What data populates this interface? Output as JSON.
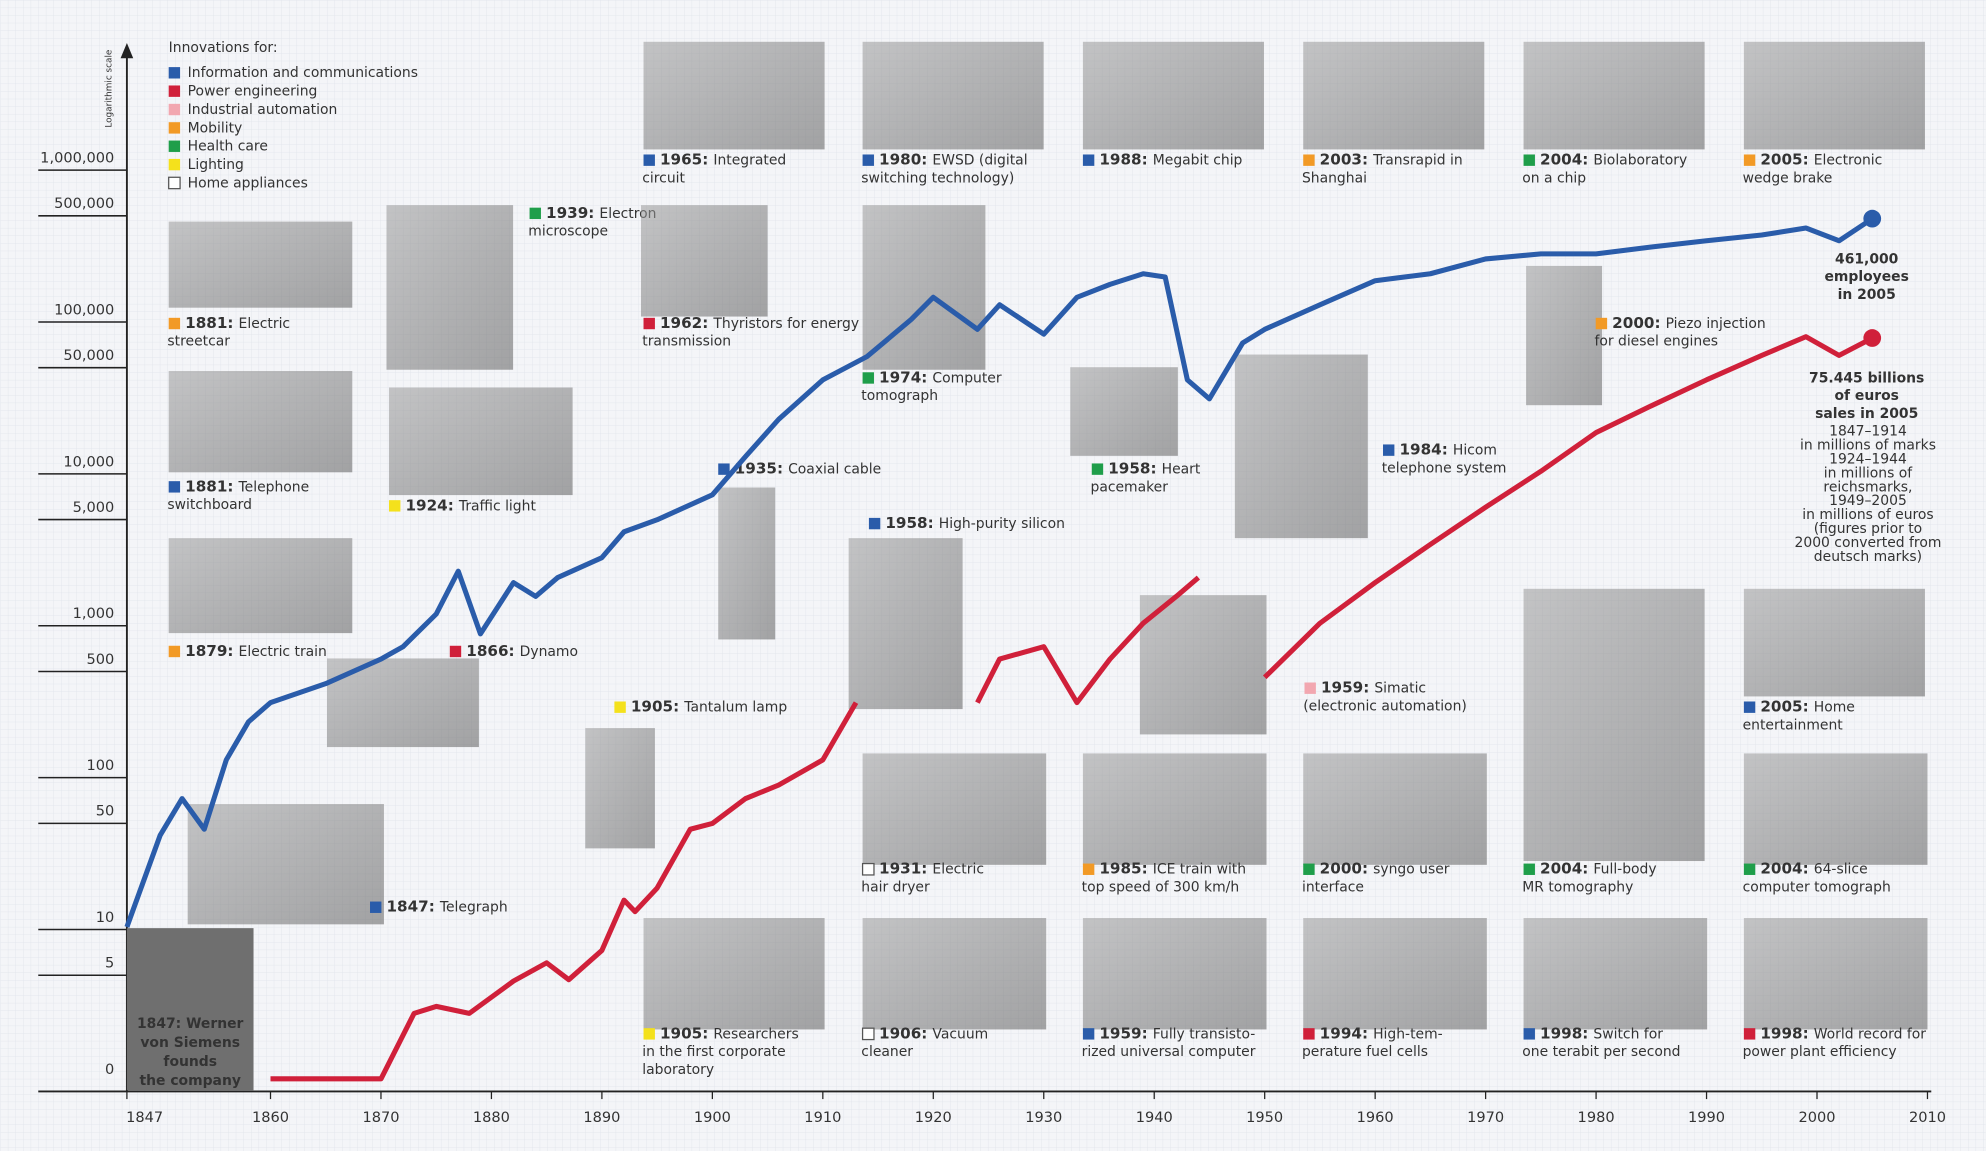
{
  "chart_data": {
    "type": "line",
    "log_scale": true,
    "y_axis_label": "Logarithmic scale",
    "y_origin_label": "0",
    "xlim": [
      1847,
      2010
    ],
    "xticks": [
      1847,
      1860,
      1870,
      1880,
      1890,
      1900,
      1910,
      1920,
      1930,
      1940,
      1950,
      1960,
      1970,
      1980,
      1990,
      2000,
      2010
    ],
    "ylim": [
      1,
      6000000
    ],
    "yticks": [
      5,
      10,
      50,
      100,
      500,
      {
        "value": 1000,
        "label": "1,000"
      },
      {
        "value": 5000,
        "label": "5,000"
      },
      {
        "value": 10000,
        "label": "10,000"
      },
      {
        "value": 50000,
        "label": "50,000"
      },
      {
        "value": 100000,
        "label": "100,000"
      },
      {
        "value": 500000,
        "label": "500,000"
      },
      {
        "value": 1000000,
        "label": "1,000,000"
      }
    ],
    "series": [
      {
        "color": "#2a5caa",
        "x": [
          1847,
          1850,
          1852,
          1854,
          1856,
          1858,
          1860,
          1865,
          1870,
          1872,
          1875,
          1877,
          1879,
          1882,
          1884,
          1886,
          1890,
          1892,
          1895,
          1900,
          1903,
          1906,
          1910,
          1914,
          1918,
          1920,
          1924,
          1926,
          1930,
          1933,
          1936,
          1939,
          1941,
          1943,
          1945,
          1948,
          1950,
          1955,
          1960,
          1965,
          1970,
          1975,
          1980,
          1985,
          1990,
          1995,
          1999,
          2002,
          2005
        ],
        "values": [
          10,
          40,
          70,
          44,
          126,
          224,
          300,
          400,
          580,
          700,
          1150,
          2200,
          850,
          1850,
          1500,
          2000,
          2700,
          4000,
          4800,
          7000,
          12500,
          22000,
          40000,
          57000,
          100000,
          140000,
          86000,
          125000,
          80000,
          140000,
          170000,
          200000,
          190000,
          40000,
          30000,
          70000,
          86000,
          125000,
          180000,
          200000,
          250000,
          270000,
          270000,
          300000,
          330000,
          360000,
          400000,
          330000,
          461000
        ]
      },
      {
        "color": "#d0203a",
        "x": [
          1860,
          1870,
          1873,
          1875,
          1878,
          1882,
          1885,
          1887,
          1890,
          1892,
          1893,
          1895,
          1898,
          1900,
          1903,
          1906,
          1910,
          1913,
          1918,
          1924,
          1926,
          1930,
          1933,
          1936,
          1939,
          1942,
          1944,
          1946,
          1950,
          1955,
          1960,
          1965,
          1970,
          1975,
          1980,
          1985,
          1990,
          1995,
          1999,
          2002,
          2005
        ],
        "values": [
          1,
          1,
          2.7,
          3,
          2.7,
          4.4,
          5.8,
          4.5,
          7,
          15,
          12.6,
          18,
          44,
          48,
          70,
          86,
          126,
          300,
          null,
          300,
          580,
          700,
          300,
          580,
          1000,
          1500,
          2000,
          null,
          440,
          1000,
          1850,
          3300,
          5800,
          10000,
          18000,
          27000,
          40000,
          58000,
          77000,
          58000,
          75445
        ]
      }
    ],
    "annotations": [
      {
        "lines": [
          "461,000",
          "employees",
          "in 2005"
        ],
        "color": "#2a5caa"
      },
      {
        "lines": [
          "75.445 billions",
          "of euros",
          "sales in 2005"
        ],
        "color": "#d0203a"
      },
      {
        "lines": [
          "1847–1914",
          "in millions of marks",
          "1924–1944",
          "in millions of",
          "reichsmarks,",
          "1949–2005",
          "in millions of euros",
          "(figures prior to",
          "2000 converted from",
          "deutsch marks)"
        ],
        "color": "#d0203a"
      }
    ]
  },
  "legend": {
    "title": "Innovations for:",
    "items": [
      {
        "label": "Information and communications",
        "color": "#2a5caa"
      },
      {
        "label": "Power engineering",
        "color": "#d0203a"
      },
      {
        "label": "Industrial automation",
        "color": "#f2a7b0"
      },
      {
        "label": "Mobility",
        "color": "#f29a26"
      },
      {
        "label": "Health care",
        "color": "#1f9e4a"
      },
      {
        "label": "Lighting",
        "color": "#f4e11c"
      },
      {
        "label": "Home appliances",
        "color": "#ffffff"
      }
    ]
  },
  "founder": [
    "1847: Werner",
    "von Siemens",
    "founds",
    "the company"
  ],
  "innovations": [
    {
      "year": "1965:",
      "lines": [
        "Integrated",
        "circuit"
      ],
      "color": "#2a5caa"
    },
    {
      "year": "1980:",
      "lines": [
        "EWSD (digital",
        "switching technology)"
      ],
      "color": "#2a5caa"
    },
    {
      "year": "1988:",
      "lines": [
        "Megabit chip"
      ],
      "color": "#2a5caa"
    },
    {
      "year": "2003:",
      "lines": [
        "Transrapid in",
        "Shanghai"
      ],
      "color": "#f29a26"
    },
    {
      "year": "2004:",
      "lines": [
        "Biolaboratory",
        "on a chip"
      ],
      "color": "#1f9e4a"
    },
    {
      "year": "2005:",
      "lines": [
        "Electronic",
        "wedge brake"
      ],
      "color": "#f29a26"
    },
    {
      "year": "1881:",
      "lines": [
        "Electric",
        "streetcar"
      ],
      "color": "#f29a26"
    },
    {
      "year": "1939:",
      "lines": [
        "Electron",
        "microscope"
      ],
      "color": "#1f9e4a"
    },
    {
      "year": "1962:",
      "lines": [
        "Thyristors for energy",
        "transmission"
      ],
      "color": "#d0203a"
    },
    {
      "year": "1974:",
      "lines": [
        "Computer",
        "tomograph"
      ],
      "color": "#1f9e4a"
    },
    {
      "year": "1881:",
      "lines": [
        "Telephone",
        "switchboard"
      ],
      "color": "#2a5caa"
    },
    {
      "year": "1924:",
      "lines": [
        "Traffic light"
      ],
      "color": "#f4e11c"
    },
    {
      "year": "1935:",
      "lines": [
        "Coaxial cable"
      ],
      "color": "#2a5caa"
    },
    {
      "year": "1958:",
      "lines": [
        "Heart",
        "pacemaker"
      ],
      "color": "#1f9e4a"
    },
    {
      "year": "1984:",
      "lines": [
        "Hicom",
        "telephone system"
      ],
      "color": "#2a5caa"
    },
    {
      "year": "2000:",
      "lines": [
        "Piezo injection",
        "for diesel engines"
      ],
      "color": "#f29a26"
    },
    {
      "year": "1958:",
      "lines": [
        "High-purity silicon"
      ],
      "color": "#2a5caa"
    },
    {
      "year": "1879:",
      "lines": [
        "Electric train"
      ],
      "color": "#f29a26"
    },
    {
      "year": "1866:",
      "lines": [
        "Dynamo"
      ],
      "color": "#d0203a"
    },
    {
      "year": "1905:",
      "lines": [
        "Tantalum lamp"
      ],
      "color": "#f4e11c"
    },
    {
      "year": "1959:",
      "lines": [
        "Simatic",
        "(electronic automation)"
      ],
      "color": "#f2a7b0"
    },
    {
      "year": "2005:",
      "lines": [
        "Home",
        "entertainment"
      ],
      "color": "#2a5caa"
    },
    {
      "year": "1847:",
      "lines": [
        "Telegraph"
      ],
      "color": "#2a5caa"
    },
    {
      "year": "1931:",
      "lines": [
        "Electric",
        "hair dryer"
      ],
      "color": "#ffffff"
    },
    {
      "year": "1985:",
      "lines": [
        "ICE train with",
        "top speed of 300 km/h"
      ],
      "color": "#f29a26"
    },
    {
      "year": "2000:",
      "lines": [
        "syngo user",
        "interface"
      ],
      "color": "#1f9e4a"
    },
    {
      "year": "2004:",
      "lines": [
        "Full-body",
        "MR tomography"
      ],
      "color": "#1f9e4a"
    },
    {
      "year": "2004:",
      "lines": [
        "64-slice",
        "computer tomograph"
      ],
      "color": "#1f9e4a"
    },
    {
      "year": "1905:",
      "lines": [
        "Researchers",
        "in the first corporate",
        "laboratory"
      ],
      "color": "#f4e11c"
    },
    {
      "year": "1906:",
      "lines": [
        "Vacuum",
        "cleaner"
      ],
      "color": "#ffffff"
    },
    {
      "year": "1959:",
      "lines": [
        "Fully transisto-",
        "rized universal computer"
      ],
      "color": "#2a5caa"
    },
    {
      "year": "1994:",
      "lines": [
        "High-tem-",
        "perature fuel cells"
      ],
      "color": "#d0203a"
    },
    {
      "year": "1998:",
      "lines": [
        "Switch for",
        "one terabit per second"
      ],
      "color": "#2a5caa"
    },
    {
      "year": "1998:",
      "lines": [
        "World record for",
        "power plant efficiency"
      ],
      "color": "#d0203a"
    }
  ]
}
